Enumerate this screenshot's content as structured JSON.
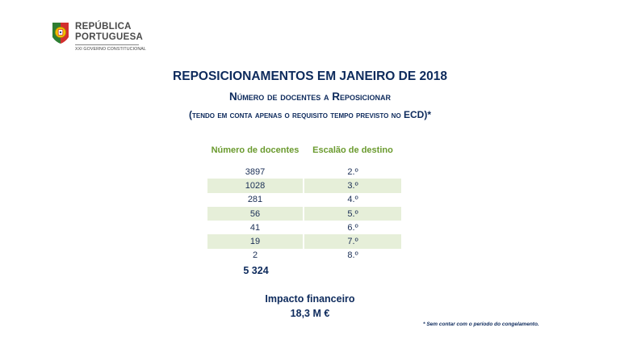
{
  "logo": {
    "line1": "REPÚBLICA",
    "line2": "PORTUGUESA",
    "line3": "XXI GOVERNO CONSTITUCIONAL"
  },
  "title": "REPOSICIONAMENTOS EM JANEIRO DE 2018",
  "subtitle": "Número de docentes a Reposicionar",
  "note": "(tendo em conta apenas o requisito tempo previsto no ECD)*",
  "table": {
    "headers": [
      "Número de docentes",
      "Escalão de destino"
    ],
    "rows": [
      [
        "3897",
        "2.º"
      ],
      [
        "1028",
        "3.º"
      ],
      [
        "281",
        "4.º"
      ],
      [
        "56",
        "5.º"
      ],
      [
        "41",
        "6.º"
      ],
      [
        "19",
        "7.º"
      ],
      [
        "2",
        "8.º"
      ]
    ]
  },
  "total": "5 324",
  "impact": {
    "label": "Impacto financeiro",
    "value": "18,3 M €"
  },
  "footnote": "* Sem contar com o período do congelamento.",
  "colors": {
    "title": "#0d2a5c",
    "header_text": "#6a9a2e",
    "row_band": "#e6efd9"
  }
}
